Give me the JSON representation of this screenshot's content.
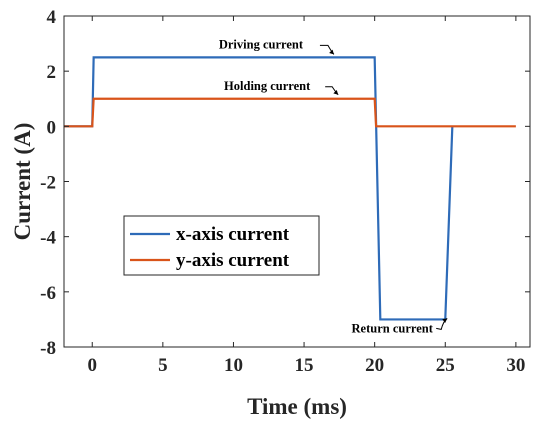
{
  "chart_data": {
    "type": "line",
    "xlabel": "Time (ms)",
    "ylabel": "Current (A)",
    "xlim": [
      -2,
      31
    ],
    "ylim": [
      -8,
      4
    ],
    "xticks": [
      0,
      5,
      10,
      15,
      20,
      25,
      30
    ],
    "yticks": [
      -8,
      -6,
      -4,
      -2,
      0,
      2,
      4
    ],
    "grid": false,
    "legend_position": "lower-left",
    "series": [
      {
        "name": "x-axis current",
        "color": "#2e6bb8",
        "x": [
          -2,
          0,
          0.1,
          20,
          20.4,
          20.5,
          25,
          25.5
        ],
        "y": [
          0,
          0,
          2.5,
          2.5,
          -7,
          -7,
          -7,
          0
        ]
      },
      {
        "name": "y-axis current",
        "color": "#d9541a",
        "x": [
          -2,
          0,
          0.1,
          20,
          20.1,
          30
        ],
        "y": [
          0,
          0,
          1,
          1,
          0,
          0
        ]
      }
    ],
    "annotations": [
      {
        "text": "Driving current",
        "x": 14,
        "y": 2.5
      },
      {
        "text": "Holding current",
        "x": 14.3,
        "y": 1
      },
      {
        "text": "Return current",
        "x": 24.5,
        "y": -7
      }
    ]
  }
}
